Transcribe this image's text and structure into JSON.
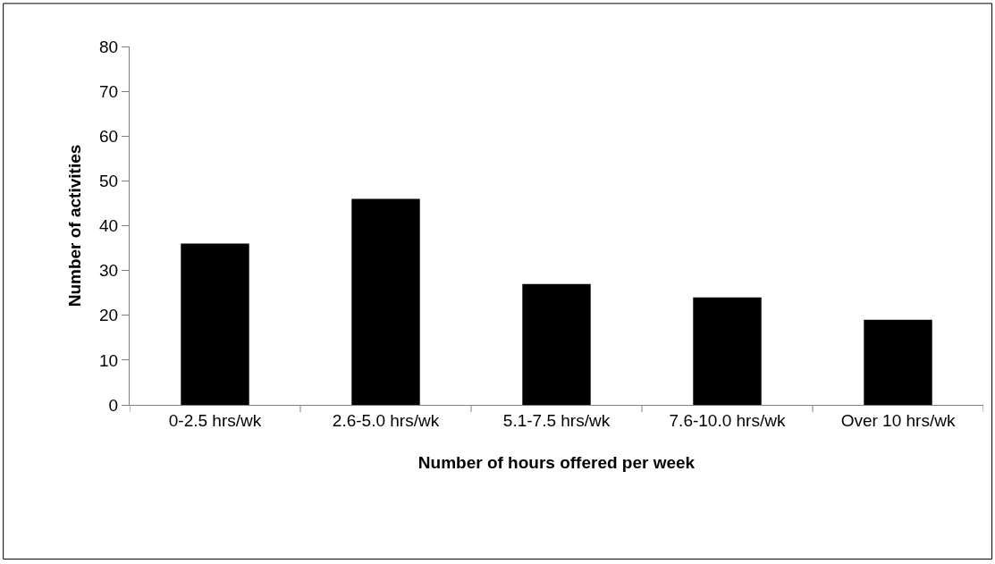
{
  "chart_data": {
    "type": "bar",
    "xlabel": "Number of hours offered per week",
    "ylabel": "Number of activities",
    "categories": [
      "0-2.5 hrs/wk",
      "2.6-5.0 hrs/wk",
      "5.1-7.5 hrs/wk",
      "7.6-10.0 hrs/wk",
      "Over 10 hrs/wk"
    ],
    "values": [
      36,
      46,
      27,
      24,
      19
    ],
    "color": "#000000",
    "ylim": [
      0,
      80
    ],
    "yticks": [
      0,
      10,
      20,
      30,
      40,
      50,
      60,
      70,
      80
    ],
    "legend": false
  }
}
